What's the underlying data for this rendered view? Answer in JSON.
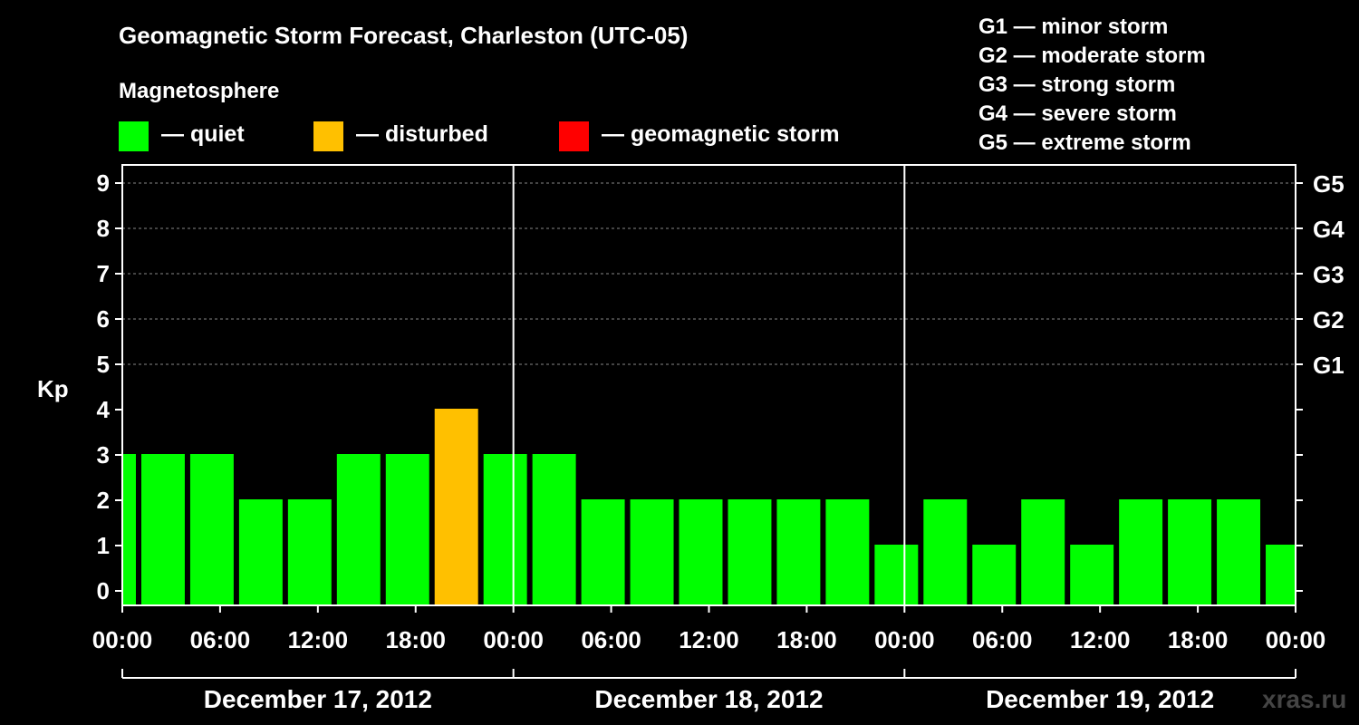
{
  "colors": {
    "quiet": "#00ff00",
    "disturbed": "#ffc000",
    "storm": "#ff0000",
    "background": "#000000",
    "foreground": "#ffffff"
  },
  "header": {
    "title": "Geomagnetic Storm Forecast, Charleston (UTC-05)",
    "section": "Magnetosphere"
  },
  "legend": {
    "quiet": "— quiet",
    "disturbed": "— disturbed",
    "storm": "— geomagnetic storm"
  },
  "gscale": [
    "G1 — minor storm",
    "G2 — moderate storm",
    "G3 — strong storm",
    "G4 — severe storm",
    "G5 — extreme storm"
  ],
  "watermark": "xras.ru",
  "chart_data": {
    "type": "bar",
    "title": "Geomagnetic Storm Forecast, Charleston (UTC-05)",
    "ylabel": "Kp",
    "ylim": [
      0,
      9
    ],
    "yticks": [
      "0",
      "1",
      "2",
      "3",
      "4",
      "5",
      "6",
      "7",
      "8",
      "9"
    ],
    "right_ticks": [
      {
        "kp": 5,
        "label": "G1"
      },
      {
        "kp": 6,
        "label": "G2"
      },
      {
        "kp": 7,
        "label": "G3"
      },
      {
        "kp": 8,
        "label": "G4"
      },
      {
        "kp": 9,
        "label": "G5"
      }
    ],
    "x_range_hours": [
      0,
      72
    ],
    "xticks": [
      {
        "hour": 0,
        "label": "00:00"
      },
      {
        "hour": 6,
        "label": "06:00"
      },
      {
        "hour": 12,
        "label": "12:00"
      },
      {
        "hour": 18,
        "label": "18:00"
      },
      {
        "hour": 24,
        "label": "00:00"
      },
      {
        "hour": 30,
        "label": "06:00"
      },
      {
        "hour": 36,
        "label": "12:00"
      },
      {
        "hour": 42,
        "label": "18:00"
      },
      {
        "hour": 48,
        "label": "00:00"
      },
      {
        "hour": 54,
        "label": "06:00"
      },
      {
        "hour": 60,
        "label": "12:00"
      },
      {
        "hour": 66,
        "label": "18:00"
      },
      {
        "hour": 72,
        "label": "00:00"
      }
    ],
    "days": [
      {
        "label": "December 17, 2012",
        "start": 0,
        "end": 24
      },
      {
        "label": "December 18, 2012",
        "start": 24,
        "end": 48
      },
      {
        "label": "December 19, 2012",
        "start": 48,
        "end": 72
      }
    ],
    "day_dividers": [
      24,
      48
    ],
    "bars": [
      {
        "start": 0,
        "end": 1,
        "kp": 3,
        "level": "quiet"
      },
      {
        "start": 1,
        "end": 4,
        "kp": 3,
        "level": "quiet"
      },
      {
        "start": 4,
        "end": 7,
        "kp": 3,
        "level": "quiet"
      },
      {
        "start": 7,
        "end": 10,
        "kp": 2,
        "level": "quiet"
      },
      {
        "start": 10,
        "end": 13,
        "kp": 2,
        "level": "quiet"
      },
      {
        "start": 13,
        "end": 16,
        "kp": 3,
        "level": "quiet"
      },
      {
        "start": 16,
        "end": 19,
        "kp": 3,
        "level": "quiet"
      },
      {
        "start": 19,
        "end": 22,
        "kp": 4,
        "level": "disturbed"
      },
      {
        "start": 22,
        "end": 25,
        "kp": 3,
        "level": "quiet"
      },
      {
        "start": 25,
        "end": 28,
        "kp": 3,
        "level": "quiet"
      },
      {
        "start": 28,
        "end": 31,
        "kp": 2,
        "level": "quiet"
      },
      {
        "start": 31,
        "end": 34,
        "kp": 2,
        "level": "quiet"
      },
      {
        "start": 34,
        "end": 37,
        "kp": 2,
        "level": "quiet"
      },
      {
        "start": 37,
        "end": 40,
        "kp": 2,
        "level": "quiet"
      },
      {
        "start": 40,
        "end": 43,
        "kp": 2,
        "level": "quiet"
      },
      {
        "start": 43,
        "end": 46,
        "kp": 2,
        "level": "quiet"
      },
      {
        "start": 46,
        "end": 49,
        "kp": 1,
        "level": "quiet"
      },
      {
        "start": 49,
        "end": 52,
        "kp": 2,
        "level": "quiet"
      },
      {
        "start": 52,
        "end": 55,
        "kp": 1,
        "level": "quiet"
      },
      {
        "start": 55,
        "end": 58,
        "kp": 2,
        "level": "quiet"
      },
      {
        "start": 58,
        "end": 61,
        "kp": 1,
        "level": "quiet"
      },
      {
        "start": 61,
        "end": 64,
        "kp": 2,
        "level": "quiet"
      },
      {
        "start": 64,
        "end": 67,
        "kp": 2,
        "level": "quiet"
      },
      {
        "start": 67,
        "end": 70,
        "kp": 2,
        "level": "quiet"
      },
      {
        "start": 70,
        "end": 72,
        "kp": 1,
        "level": "quiet"
      }
    ]
  }
}
